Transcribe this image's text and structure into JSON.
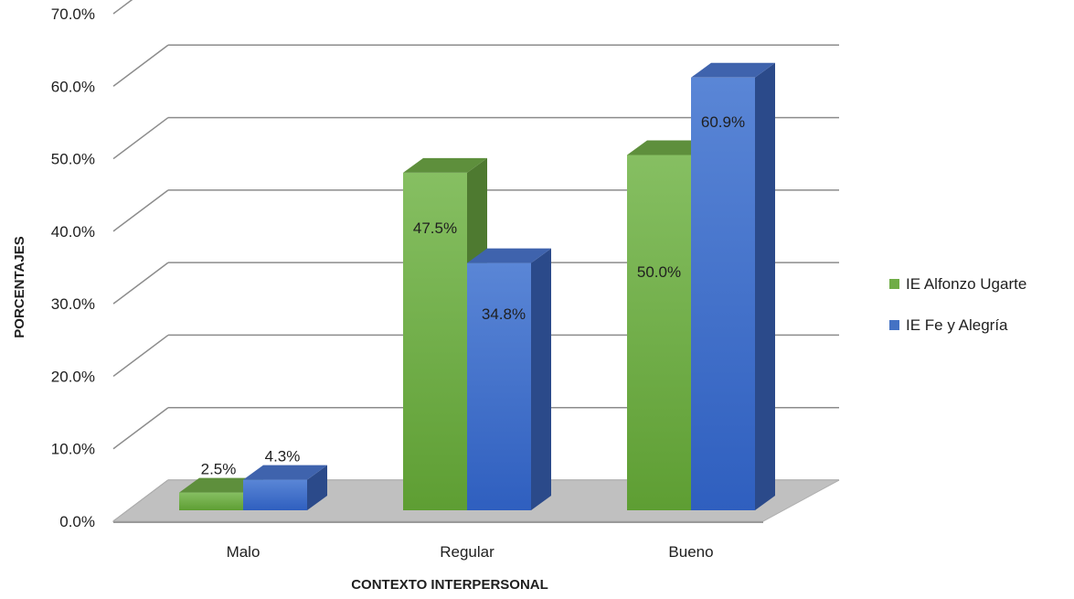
{
  "chart_data": {
    "type": "bar",
    "categories": [
      "Malo",
      "Regular",
      "Bueno"
    ],
    "series": [
      {
        "name": "IE Alfonzo Ugarte",
        "values": [
          2.5,
          47.5,
          50.0
        ],
        "color": "#70ad47",
        "labels": [
          "2.5%",
          "47.5%",
          "50.0%"
        ]
      },
      {
        "name": "IE Fe y Alegría",
        "values": [
          4.3,
          34.8,
          60.9
        ],
        "color": "#4472c4",
        "labels": [
          "4.3%",
          "34.8%",
          "60.9%"
        ]
      }
    ],
    "yticks": [
      "0.0%",
      "10.0%",
      "20.0%",
      "30.0%",
      "40.0%",
      "50.0%",
      "60.0%",
      "70.0%"
    ],
    "xlabel": "CONTEXTO INTERPERSONAL",
    "ylabel": "PORCENTAJES",
    "ylim": [
      0,
      70
    ],
    "grid": true,
    "legend": "right"
  }
}
